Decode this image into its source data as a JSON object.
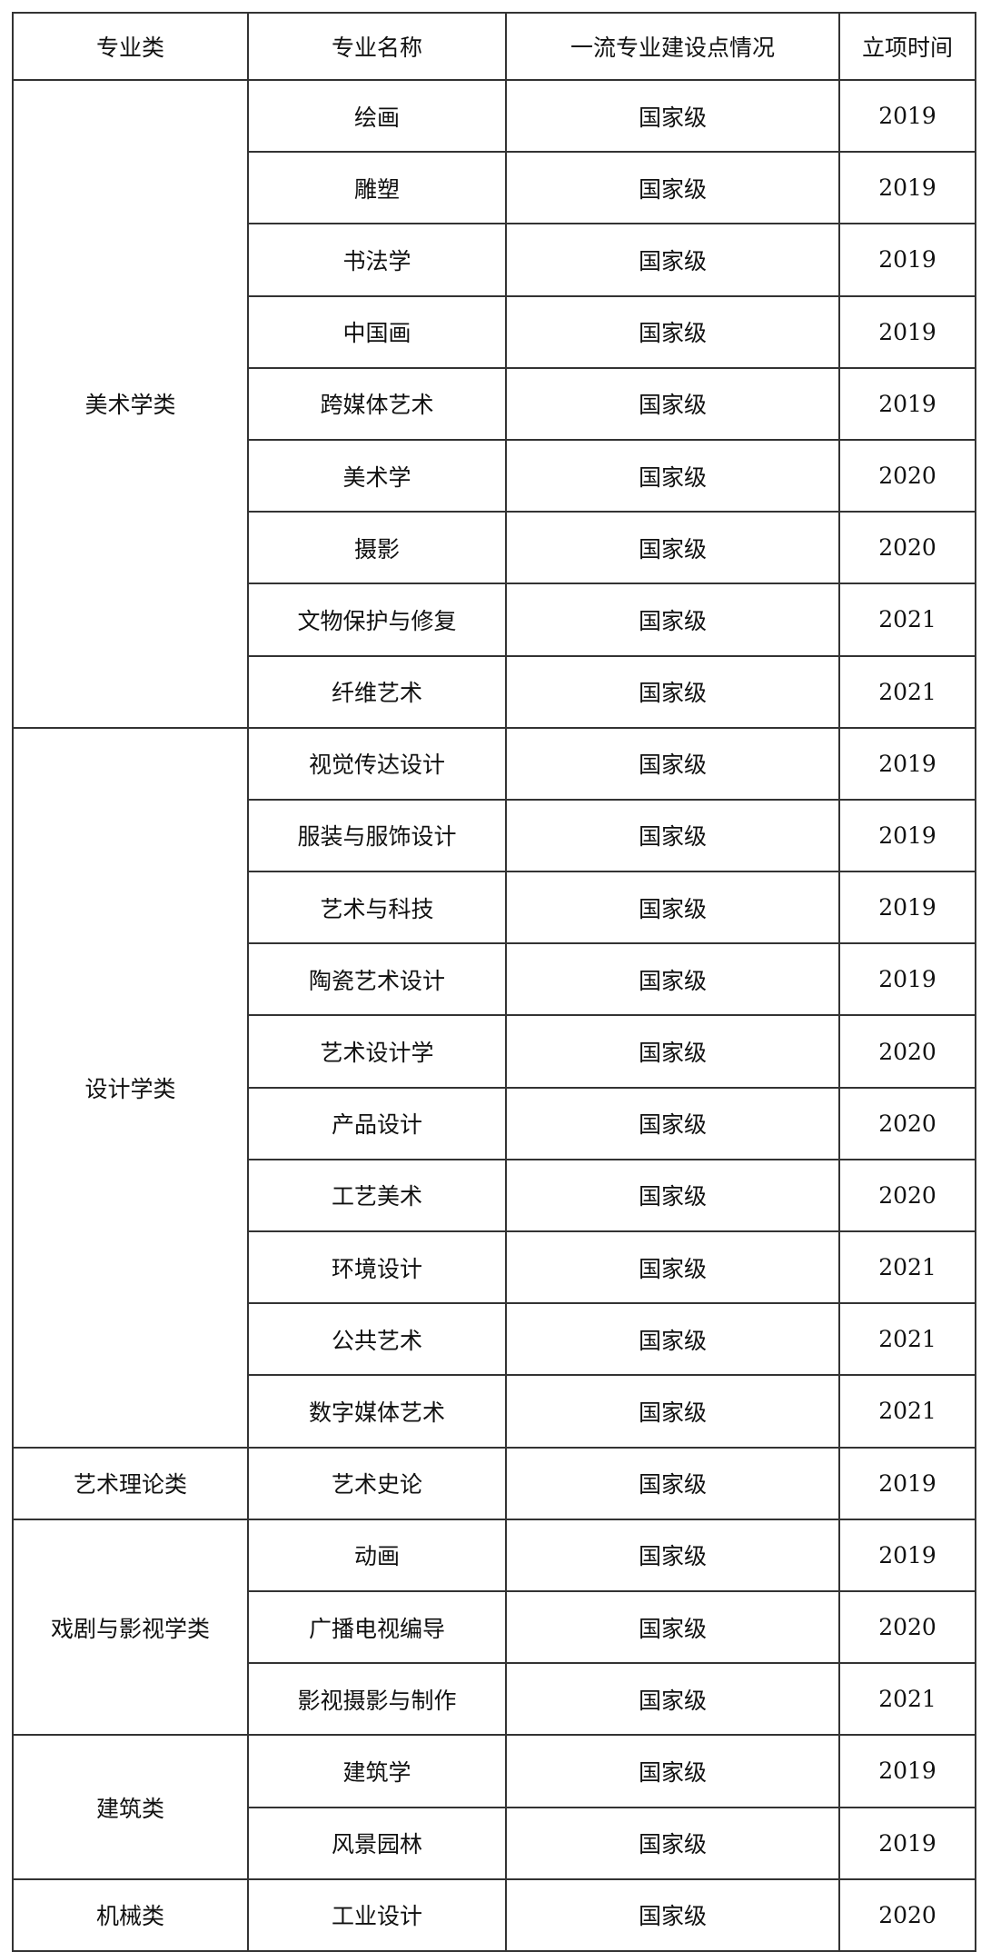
{
  "headers": [
    "专业类",
    "专业名称",
    "一流专业建设点情况",
    "立项时间"
  ],
  "groups": [
    {
      "category": "美术学类",
      "rows": [
        [
          "绘画",
          "国家级",
          "2019"
        ],
        [
          "雕塑",
          "国家级",
          "2019"
        ],
        [
          "书法学",
          "国家级",
          "2019"
        ],
        [
          "中国画",
          "国家级",
          "2019"
        ],
        [
          "跨媒体艺术",
          "国家级",
          "2019"
        ],
        [
          "美术学",
          "国家级",
          "2020"
        ],
        [
          "摄影",
          "国家级",
          "2020"
        ],
        [
          "文物保护与修复",
          "国家级",
          "2021"
        ],
        [
          "纤维艺术",
          "国家级",
          "2021"
        ]
      ]
    },
    {
      "category": "设计学类",
      "rows": [
        [
          "视觉传达设计",
          "国家级",
          "2019"
        ],
        [
          "服装与服饰设计",
          "国家级",
          "2019"
        ],
        [
          "艺术与科技",
          "国家级",
          "2019"
        ],
        [
          "陶瓷艺术设计",
          "国家级",
          "2019"
        ],
        [
          "艺术设计学",
          "国家级",
          "2020"
        ],
        [
          "产品设计",
          "国家级",
          "2020"
        ],
        [
          "工艺美术",
          "国家级",
          "2020"
        ],
        [
          "环境设计",
          "国家级",
          "2021"
        ],
        [
          "公共艺术",
          "国家级",
          "2021"
        ],
        [
          "数字媒体艺术",
          "国家级",
          "2021"
        ]
      ]
    },
    {
      "category": "艺术理论类",
      "rows": [
        [
          "艺术史论",
          "国家级",
          "2019"
        ]
      ]
    },
    {
      "category": "戏剧与影视学类",
      "rows": [
        [
          "动画",
          "国家级",
          "2019"
        ],
        [
          "广播电视编导",
          "国家级",
          "2020"
        ],
        [
          "影视摄影与制作",
          "国家级",
          "2021"
        ]
      ]
    },
    {
      "category": "建筑类",
      "rows": [
        [
          "建筑学",
          "国家级",
          "2019"
        ],
        [
          "风景园林",
          "国家级",
          "2019"
        ]
      ]
    },
    {
      "category": "机械类",
      "rows": [
        [
          "工业设计",
          "国家级",
          "2020"
        ]
      ]
    }
  ]
}
